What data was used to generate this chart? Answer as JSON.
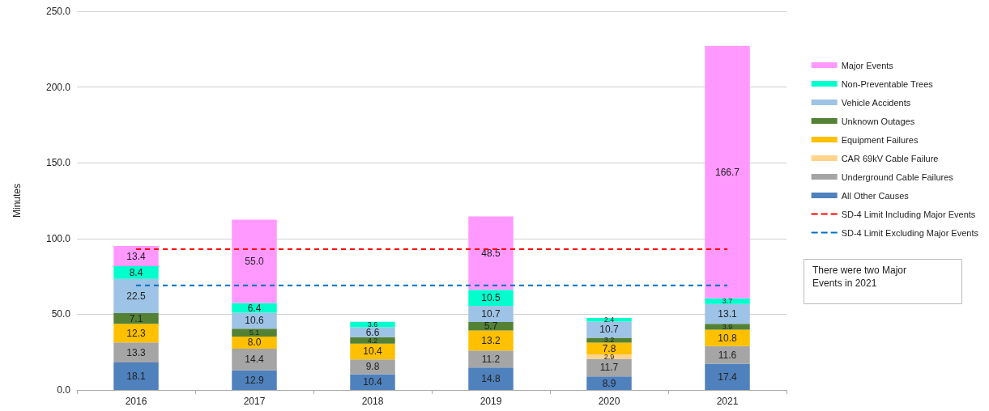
{
  "chart_data": {
    "type": "bar",
    "stacked": true,
    "ylabel": "Minutes",
    "categories": [
      "2016",
      "2017",
      "2018",
      "2019",
      "2020",
      "2021"
    ],
    "series": [
      {
        "name": "All Other Causes",
        "color": "#4f81bd",
        "values": [
          18.1,
          12.9,
          10.4,
          14.8,
          8.9,
          17.4
        ],
        "value_labels": [
          "18.1",
          "12.9",
          "10.4",
          "14.8",
          "8.9",
          "17.4"
        ]
      },
      {
        "name": "Underground Cable Failures",
        "color": "#a5a5a5",
        "values": [
          13.3,
          14.4,
          9.8,
          11.2,
          11.7,
          11.6
        ],
        "value_labels": [
          "13.3",
          "14.4",
          "9.8",
          "11.2",
          "11.7",
          "11.6"
        ]
      },
      {
        "name": "CAR 69kV Cable Failure",
        "color": "#ffd38a",
        "values": [
          null,
          null,
          null,
          null,
          2.9,
          null
        ],
        "value_labels": [
          null,
          null,
          null,
          null,
          "2.9",
          null
        ]
      },
      {
        "name": "Equipment Failures",
        "color": "#ffc000",
        "values": [
          12.3,
          8.0,
          10.4,
          13.2,
          7.8,
          10.8
        ],
        "value_labels": [
          "12.3",
          "8.0",
          "10.4",
          "13.2",
          "7.8",
          "10.8"
        ]
      },
      {
        "name": "Unknown Outages",
        "color": "#548235",
        "values": [
          7.1,
          5.1,
          4.2,
          5.7,
          3.2,
          3.9
        ],
        "value_labels": [
          "7.1",
          "5.1",
          "4.2",
          "5.7",
          "3.2",
          "3.9"
        ]
      },
      {
        "name": "Vehicle Accidents",
        "color": "#9dc3e6",
        "values": [
          22.5,
          10.6,
          6.6,
          10.7,
          10.7,
          13.1
        ],
        "value_labels": [
          "22.5",
          "10.6",
          "6.6",
          "10.7",
          "10.7",
          "13.1"
        ]
      },
      {
        "name": "Non-Preventable Trees",
        "color": "#00ffcc",
        "values": [
          8.4,
          6.4,
          3.6,
          10.5,
          2.4,
          3.7
        ],
        "value_labels": [
          "8.4",
          "6.4",
          "3.6",
          "10.5",
          "2.4",
          "3.7"
        ]
      },
      {
        "name": "Major Events",
        "color": "#ff99ff",
        "values": [
          13.4,
          55.0,
          null,
          48.5,
          null,
          166.7
        ],
        "value_labels": [
          "13.4",
          "55.0",
          null,
          "48.5",
          null,
          "166.7"
        ]
      }
    ],
    "ref_lines": [
      {
        "axis": "y",
        "value": 93,
        "label": "SD-4 Limit Including Major Events",
        "color": "#ff0000",
        "line_style": "dashed"
      },
      {
        "axis": "y",
        "value": 69,
        "label": "SD-4 Limit Excluding Major Events",
        "color": "#0070c0",
        "line_style": "dashed"
      }
    ],
    "ylim": [
      0,
      250
    ],
    "yticks": [
      {
        "value": 0,
        "label": "0.0"
      },
      {
        "value": 50,
        "label": "50.0"
      },
      {
        "value": 100,
        "label": "100.0"
      },
      {
        "value": 150,
        "label": "150.0"
      },
      {
        "value": 200,
        "label": "200.0"
      },
      {
        "value": 250,
        "label": "250.0"
      }
    ],
    "grid": "y",
    "legend": "right",
    "annotations": [
      "There were two Major Events in 2021"
    ]
  }
}
